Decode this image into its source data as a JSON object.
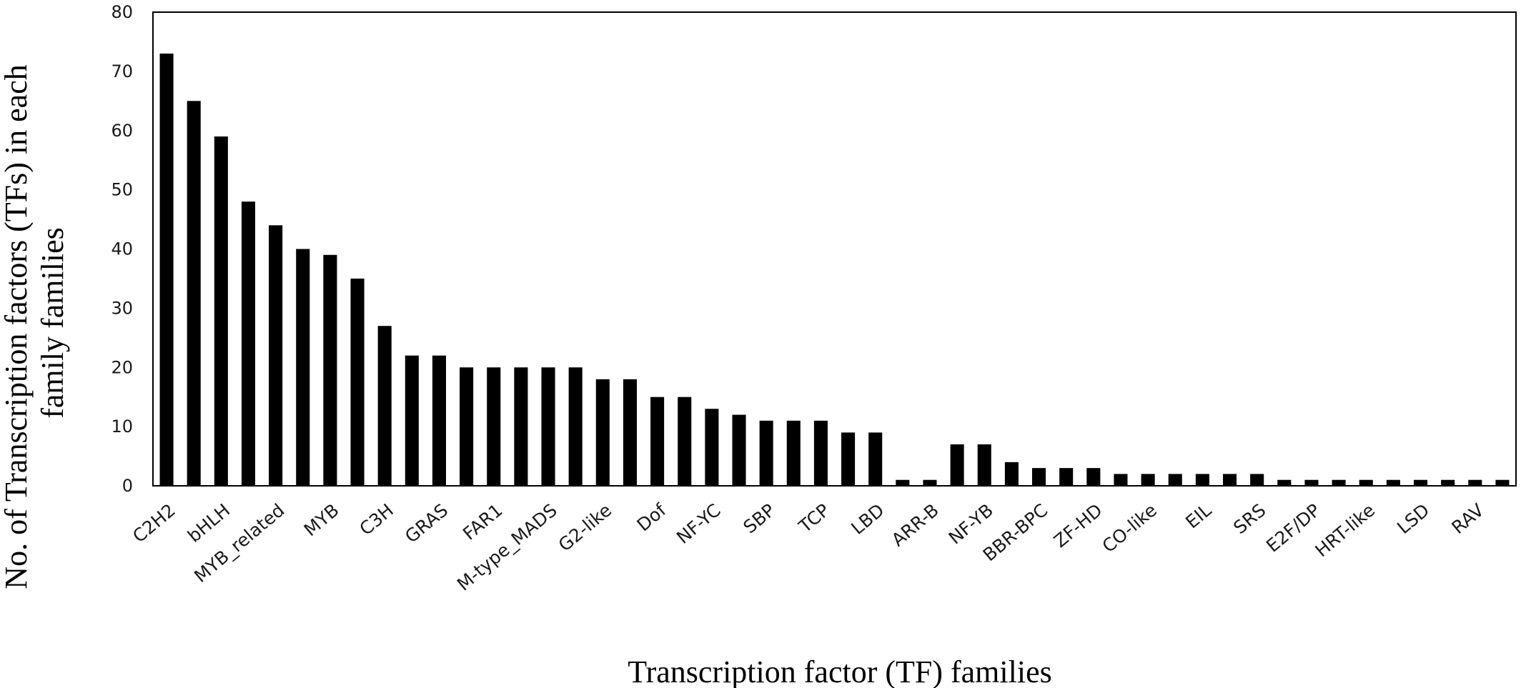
{
  "chart_data": {
    "type": "bar",
    "xlabel": "Transcription factor (TF) families",
    "ylabel_lines": [
      "No. of Transcription factors (TFs) in each",
      "family families"
    ],
    "ylim": [
      0,
      80
    ],
    "yticks": [
      0,
      10,
      20,
      30,
      40,
      50,
      60,
      70,
      80
    ],
    "grid": false,
    "legend": "none",
    "bar_color": "#000000",
    "categories": [
      "C2H2",
      "",
      "bHLH",
      "",
      "MYB_related",
      "",
      "MYB",
      "",
      "C3H",
      "",
      "GRAS",
      "",
      "FAR1",
      "",
      "M-type_MADS",
      "",
      "G2-like",
      "",
      "Dof",
      "",
      "NF-YC",
      "",
      "SBP",
      "",
      "TCP",
      "",
      "LBD",
      "",
      "ARR-B",
      "",
      "NF-YB",
      "",
      "BBR-BPC",
      "",
      "ZF-HD",
      "",
      "CO-like",
      "",
      "EIL",
      "",
      "SRS",
      "",
      "E2F/DP",
      "",
      "HRT-like",
      "",
      "LSD",
      "",
      "RAV",
      ""
    ],
    "values": [
      73,
      65,
      59,
      48,
      44,
      40,
      39,
      35,
      27,
      22,
      22,
      20,
      20,
      20,
      20,
      20,
      18,
      18,
      15,
      15,
      13,
      12,
      11,
      11,
      11,
      9,
      9,
      1,
      1,
      7,
      7,
      4,
      3,
      3,
      3,
      2,
      2,
      2,
      2,
      2,
      2,
      1,
      1,
      1,
      1,
      1,
      1,
      1,
      1,
      1
    ]
  }
}
